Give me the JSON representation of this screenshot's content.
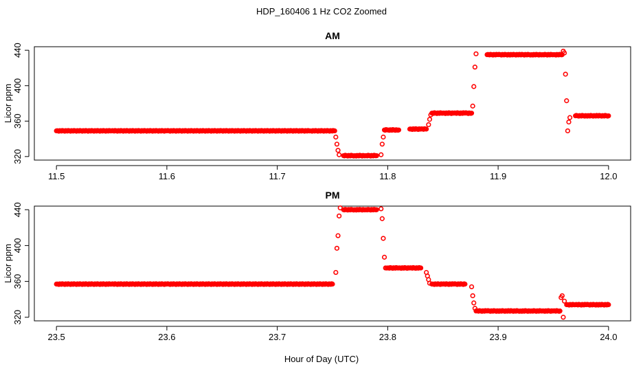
{
  "figure": {
    "title": "HDP_160406  1 Hz CO2 Zoomed",
    "xlabel": "Hour of Day (UTC)"
  },
  "colors": {
    "points": "#ff0000",
    "axes": "#000000",
    "background": "#ffffff"
  },
  "chart_data": [
    {
      "type": "scatter",
      "title": "AM",
      "ylabel": "Licor ppm",
      "xlim": [
        11.48,
        12.02
      ],
      "ylim": [
        316,
        444
      ],
      "xticks": [
        11.5,
        11.6,
        11.7,
        11.8,
        11.9,
        12.0
      ],
      "xtick_labels": [
        "11.5",
        "11.6",
        "11.7",
        "11.8",
        "11.9",
        "12.0"
      ],
      "yticks": [
        320,
        360,
        400,
        440
      ],
      "ytick_labels": [
        "320",
        "360",
        "400",
        "440"
      ],
      "grid": false,
      "marker": "open-circle",
      "series": [
        {
          "x": [
            11.5,
            11.55,
            11.6,
            11.65,
            11.7,
            11.73,
            11.752,
            11.753,
            11.754,
            11.755,
            11.756,
            11.76,
            11.77,
            11.78,
            11.79,
            11.794,
            11.795,
            11.796,
            11.797,
            11.8,
            11.81,
            11.82,
            11.83,
            11.835,
            11.837,
            11.838,
            11.839,
            11.84,
            11.85,
            11.86,
            11.87,
            11.876,
            11.877,
            11.878,
            11.879,
            11.88,
            11.89,
            11.9,
            11.91,
            11.92,
            11.93,
            11.94,
            11.95,
            11.958,
            11.959,
            11.96,
            11.961,
            11.962,
            11.963,
            11.964,
            11.965,
            11.97,
            11.98,
            11.99,
            12.0
          ],
          "y": [
            349,
            349,
            349,
            349,
            349,
            349,
            349,
            342,
            334,
            327,
            322,
            321,
            321,
            321,
            321,
            322,
            334,
            342,
            350,
            350,
            350,
            351,
            351,
            351,
            356,
            362,
            367,
            369,
            369,
            369,
            369,
            369,
            377,
            399,
            421,
            436,
            435,
            435,
            435,
            435,
            435,
            435,
            435,
            435,
            439,
            437,
            413,
            383,
            349,
            359,
            364,
            366,
            366,
            366,
            366
          ]
        }
      ]
    },
    {
      "type": "scatter",
      "title": "PM",
      "ylabel": "Licor ppm",
      "xlim": [
        23.48,
        24.02
      ],
      "ylim": [
        316,
        444
      ],
      "xticks": [
        23.5,
        23.6,
        23.7,
        23.8,
        23.9,
        24.0
      ],
      "xtick_labels": [
        "23.5",
        "23.6",
        "23.7",
        "23.8",
        "23.9",
        "24.0"
      ],
      "yticks": [
        320,
        360,
        400,
        440
      ],
      "ytick_labels": [
        "320",
        "360",
        "400",
        "440"
      ],
      "grid": false,
      "marker": "open-circle",
      "series": [
        {
          "x": [
            23.5,
            23.55,
            23.6,
            23.65,
            23.7,
            23.75,
            23.753,
            23.754,
            23.755,
            23.756,
            23.757,
            23.76,
            23.77,
            23.78,
            23.79,
            23.794,
            23.795,
            23.796,
            23.797,
            23.798,
            23.8,
            23.81,
            23.82,
            23.83,
            23.835,
            23.836,
            23.837,
            23.838,
            23.84,
            23.85,
            23.86,
            23.87,
            23.876,
            23.877,
            23.878,
            23.879,
            23.88,
            23.89,
            23.9,
            23.91,
            23.92,
            23.93,
            23.94,
            23.95,
            23.956,
            23.957,
            23.958,
            23.959,
            23.96,
            23.962,
            23.97,
            23.98,
            23.99,
            24.0
          ],
          "y": [
            357,
            357,
            357,
            357,
            357,
            357,
            370,
            397,
            411,
            433,
            442,
            440,
            440,
            440,
            440,
            441,
            430,
            408,
            387,
            375,
            375,
            375,
            375,
            375,
            370,
            366,
            362,
            358,
            357,
            357,
            357,
            357,
            354,
            344,
            336,
            330,
            327,
            327,
            327,
            327,
            327,
            327,
            327,
            327,
            327,
            342,
            344,
            320,
            338,
            334,
            334,
            334,
            334,
            334
          ]
        }
      ]
    }
  ]
}
